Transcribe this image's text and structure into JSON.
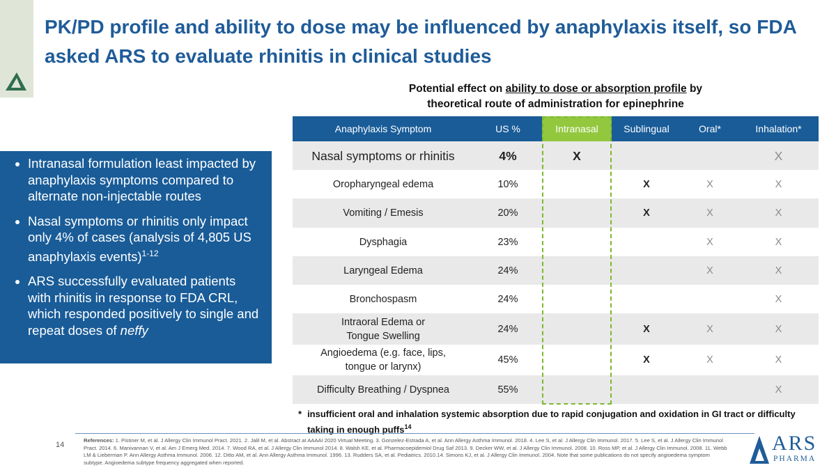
{
  "header": {
    "title": "PK/PD profile and ability to dose may be influenced by anaphylaxis itself, so FDA asked ARS to evaluate rhinitis in clinical studies"
  },
  "subtitle": {
    "before": "Potential effect on ",
    "underlined": "ability to dose or absorption profile",
    "after": " by theoretical route of administration for epinephrine"
  },
  "bullets": [
    {
      "text": "Intranasal formulation least impacted by anaphylaxis symptoms compared to alternate non-injectable routes"
    },
    {
      "text": "Nasal symptoms or rhinitis only impact only 4% of cases (analysis of 4,805 US anaphylaxis events)",
      "superscript": "1-12"
    },
    {
      "text": "ARS successfully evaluated patients with rhinitis in response to FDA CRL, which responded positively to single and repeat doses of ",
      "italic": "neffy"
    }
  ],
  "table": {
    "columns": [
      "Anaphylaxis Symptom",
      "US %",
      "Intranasal",
      "Sublingual",
      "Oral*",
      "Inhalation*"
    ],
    "rows": [
      [
        "Nasal symptoms or rhinitis",
        "4%",
        "X",
        null,
        null,
        "X"
      ],
      [
        "Oropharyngeal edema",
        "10%",
        null,
        "X",
        "X",
        "X"
      ],
      [
        "Vomiting / Emesis",
        "20%",
        null,
        "X",
        "X",
        "X"
      ],
      [
        "Dysphagia",
        "23%",
        null,
        null,
        "X",
        "X"
      ],
      [
        "Laryngeal Edema",
        "24%",
        null,
        null,
        "X",
        "X"
      ],
      [
        "Bronchospasm",
        "24%",
        null,
        null,
        null,
        "X"
      ],
      [
        "Intraoral Edema or\nTongue Swelling",
        "24%",
        null,
        "X",
        "X",
        "X"
      ],
      [
        "Angioedema (e.g. face, lips,\ntongue or larynx)",
        "45%",
        null,
        "X",
        "X",
        "X"
      ],
      [
        "Difficulty Breathing / Dyspnea",
        "55%",
        null,
        null,
        null,
        "X"
      ]
    ]
  },
  "footnote": {
    "marker": "*",
    "text": "insufficient oral and inhalation systemic absorption due to rapid conjugation and oxidation in GI tract or difficulty taking in enough puffs",
    "superscript": "14"
  },
  "footer": {
    "page_number": "14",
    "references_label": "References:",
    "references": "1. Pistiner M, et al. J Allergy Clin Immunol Pract. 2021. 2. Jalil M, et al. Abstract at AAAAI 2020 Virtual Meeting. 3. Gonzelez-Estrada A, et al. Ann Allergy Asthma Immunol. 2018. 4. Lee S, et al. J Allergy Clin Immunol. 2017. 5. Lee S, et al. J Allergy Clin Immunol Pract. 2014. 6. Manivannan V, et al. Am J Emerg Med. 2014. 7. Wood RA, et al. J Allergy Clin Immunol 2014. 8. Walsh KE, et al. Pharmacoepidemiol Drug Saf 2013. 9. Decker WW, et al. J Allergy Clin Immunol. 2008. 10. Ross MP, et al. J Allergy Clin Immunol. 2008. 11. Webb LM & Lieberman P. Ann Allergy Asthma Immunol. 2006. 12. Ditto AM, et al. Ann Allergy Asthma Immunol. 1996. 13. Rudders SA, et al. Pediatrics. 2010.14. Simons KJ, et al. J Allergy Clin Immunol. 2004. Note that some publications do not specify angioedema symptom subtype. Angioedema subtype frequency aggregated when reported."
  },
  "logo": {
    "name": "ARS",
    "tagline": "PHARMA"
  }
}
